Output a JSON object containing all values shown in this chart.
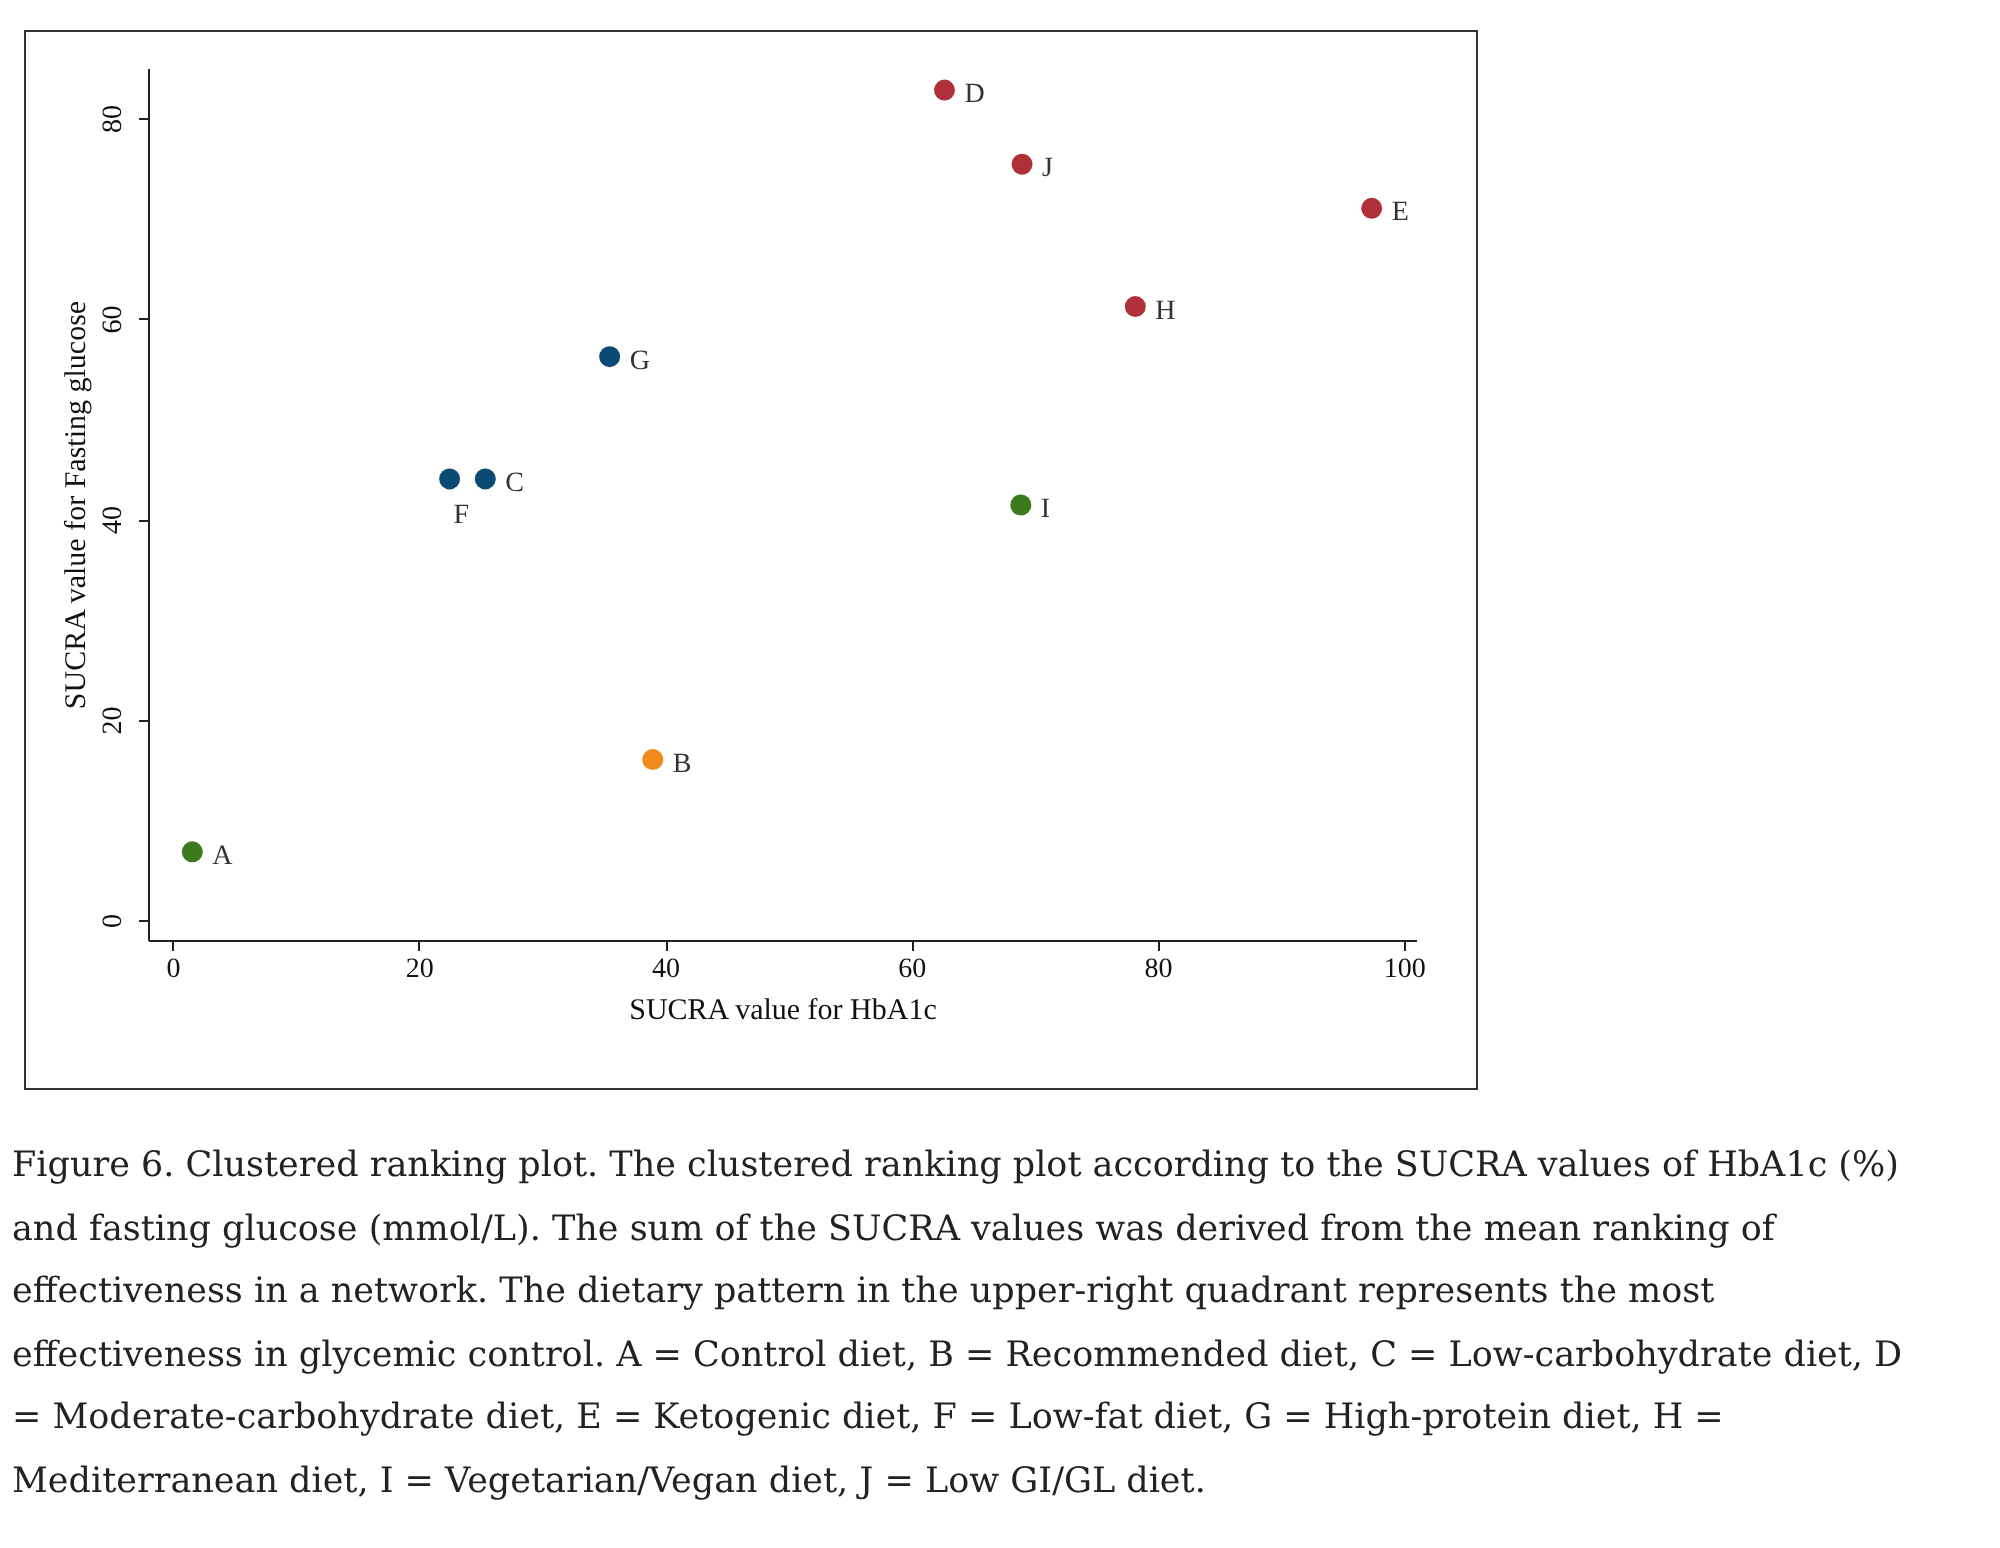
{
  "chart_data": {
    "type": "scatter",
    "xlabel": "SUCRA value for HbA1c",
    "ylabel": "SUCRA value for Fasting glucose",
    "xlim": [
      -2,
      101
    ],
    "ylim": [
      -2,
      85
    ],
    "xticks": [
      0,
      20,
      40,
      60,
      80,
      100
    ],
    "yticks": [
      0,
      20,
      40,
      60,
      80
    ],
    "grid": false,
    "marker": "circle",
    "series": [
      {
        "color": "#0b4a73",
        "x": [
          22.5,
          25.4,
          35.5
        ],
        "values": [
          44,
          44,
          56.2
        ]
      },
      {
        "color": "#b0303a",
        "x": [
          62.7,
          69,
          97.4,
          78.2
        ],
        "values": [
          82.8,
          75.4,
          71,
          61.2
        ]
      },
      {
        "color": "#3d7a1e",
        "x": [
          1.6,
          68.9
        ],
        "values": [
          6.8,
          41.4
        ]
      },
      {
        "color": "#f08a1d",
        "x": [
          39
        ],
        "values": [
          16
        ]
      }
    ],
    "annotations": [
      {
        "text": "F",
        "x": 22.5,
        "y": 44
      },
      {
        "text": "C",
        "x": 25.4,
        "y": 44
      },
      {
        "text": "G",
        "x": 35.5,
        "y": 56.2
      },
      {
        "text": "D",
        "x": 62.7,
        "y": 82.8
      },
      {
        "text": "J",
        "x": 69,
        "y": 75.4
      },
      {
        "text": "E",
        "x": 97.4,
        "y": 71
      },
      {
        "text": "H",
        "x": 78.2,
        "y": 61.2
      },
      {
        "text": "I",
        "x": 68.9,
        "y": 41.4
      },
      {
        "text": "B",
        "x": 39,
        "y": 16
      },
      {
        "text": "A",
        "x": 1.6,
        "y": 6.8
      },
      "Figure 6. Clustered ranking plot. The clustered ranking plot according to the SUCRA values of HbA1c (%) and fasting glucose (mmol/L). The sum of the SUCRA values was derived from the mean ranking of effectiveness in a network. The dietary pattern in the upper-right quadrant represents the most effectiveness in glycemic control. A = Control diet, B = Recommended diet, C = Low-carbohydrate diet, D = Moderate-carbohydrate diet, E = Ketogenic diet, F = Low-fat diet, G = High-protein diet, H = Mediterranean diet, I = Vegetarian/Vegan diet, J = Low GI/GL diet."
    ]
  }
}
